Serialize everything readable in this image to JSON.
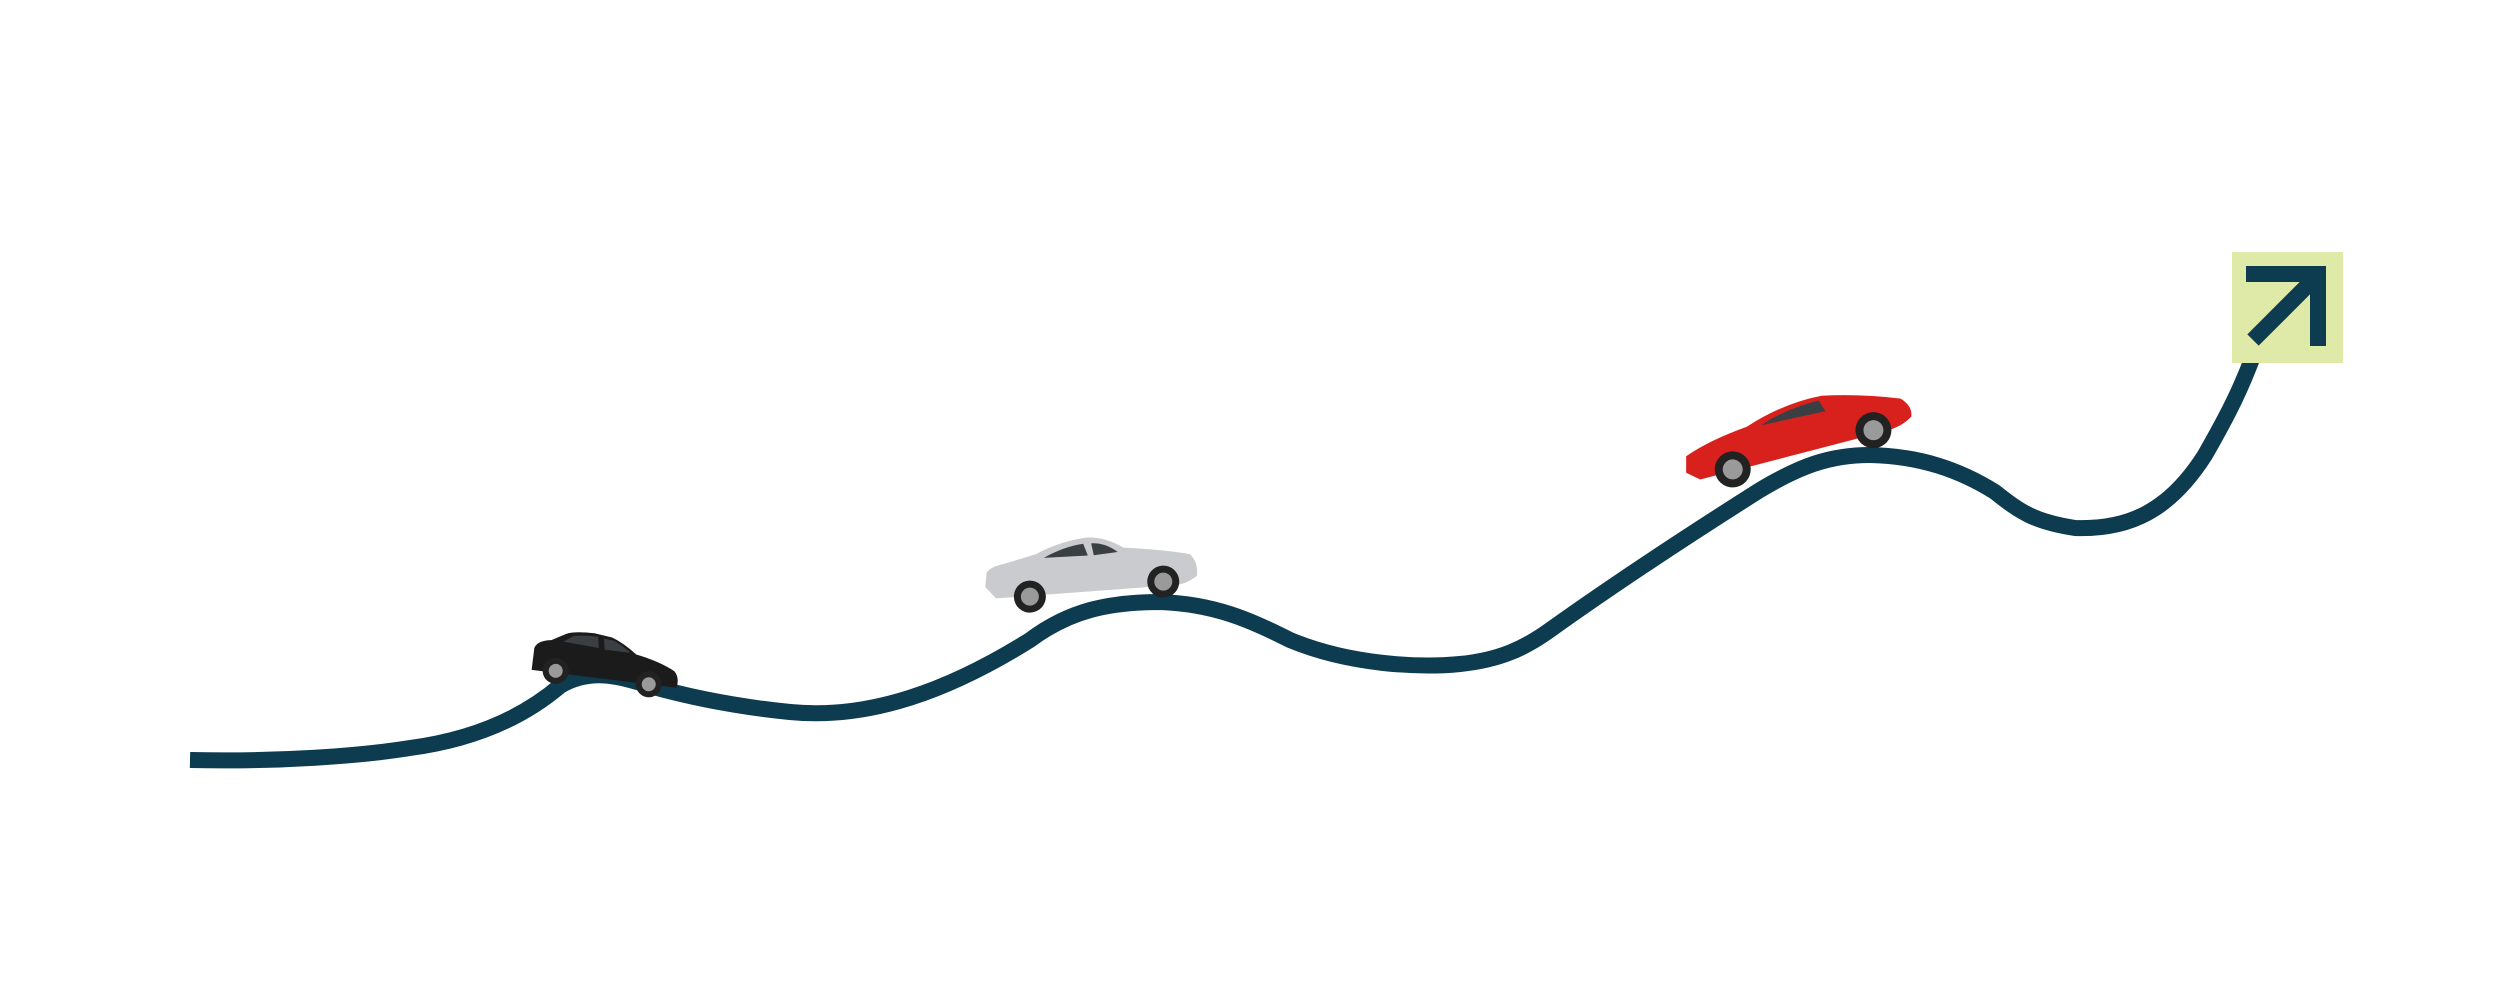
{
  "colors": {
    "road": "#0d3b4f",
    "badge_bg": "#dfeaa9",
    "badge_arrow": "#0d3b4f",
    "car_small_body": "#1b1b1b",
    "car_coupe_body": "#c9cbce",
    "car_sports_body": "#d8211d",
    "tire": "#222222",
    "rim": "#9a9a9a",
    "glass": "#3a3f44"
  },
  "icons": {
    "badge": "arrow-up-right-icon"
  }
}
